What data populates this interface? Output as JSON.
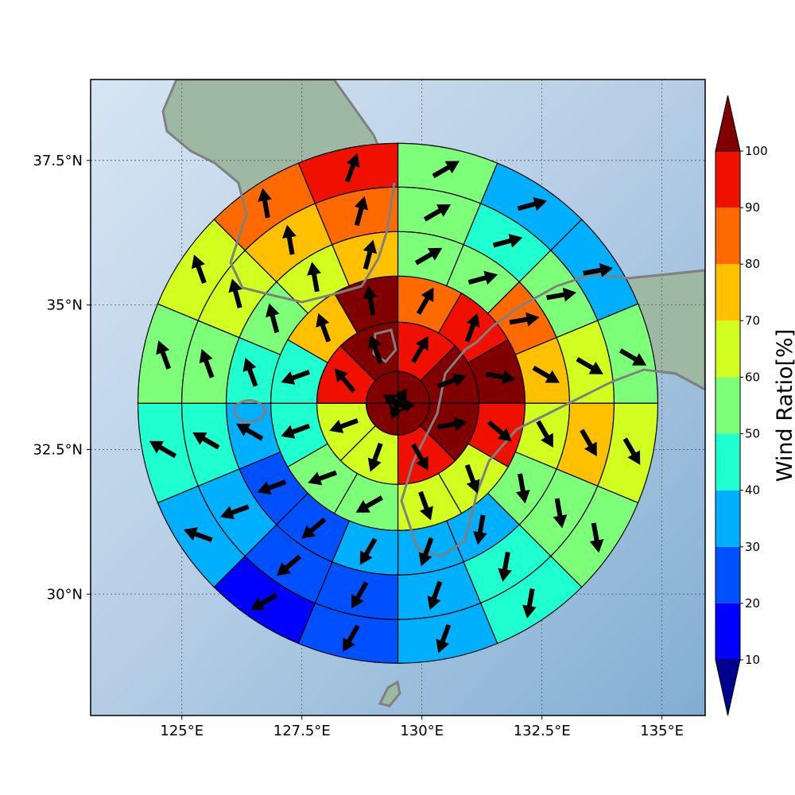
{
  "chart_data": {
    "type": "heatmap",
    "subtype": "polar-sector-wind-map",
    "x_ticks": [
      "125°E",
      "127.5°E",
      "130°E",
      "132.5°E",
      "135°E"
    ],
    "y_ticks": [
      "37.5°N",
      "35°N",
      "32.5°N",
      "30°N"
    ],
    "x_tick_values": [
      125,
      127.5,
      130,
      132.5,
      135
    ],
    "y_tick_values": [
      37.5,
      35,
      32.5,
      30
    ],
    "xlim": [
      123.1,
      135.9
    ],
    "ylim": [
      27.9,
      38.9
    ],
    "grid": true,
    "colorbar": {
      "label": "Wind Ratio[%]",
      "ticks": [
        10,
        20,
        30,
        40,
        50,
        60,
        70,
        80,
        90,
        100
      ],
      "extend": "both",
      "colors": [
        "#00008f",
        "#0000ff",
        "#0050ff",
        "#00b0ff",
        "#20ffd0",
        "#7dff7a",
        "#d0ff20",
        "#ffc000",
        "#ff6a00",
        "#f01000",
        "#800000"
      ]
    },
    "polar_grid": {
      "center": [
        129.5,
        33.3
      ],
      "ring_count": 6,
      "sectors_per_ring": [
        4,
        8,
        12,
        16,
        16,
        16
      ],
      "direction_order": "clockwise from north"
    },
    "ring_values": [
      [
        100,
        100,
        100,
        100
      ],
      [
        90,
        100,
        100,
        90,
        60,
        60,
        90,
        100
      ],
      [
        80,
        90,
        100,
        90,
        60,
        60,
        50,
        50,
        40,
        40,
        70,
        100
      ],
      [
        50,
        50,
        80,
        70,
        60,
        50,
        30,
        30,
        30,
        20,
        20,
        30,
        40,
        50,
        60,
        70
      ],
      [
        50,
        40,
        50,
        60,
        70,
        50,
        40,
        30,
        20,
        20,
        30,
        40,
        50,
        60,
        70,
        80
      ],
      [
        50,
        30,
        30,
        50,
        60,
        50,
        40,
        30,
        20,
        10,
        30,
        40,
        50,
        60,
        80,
        90
      ]
    ],
    "arrow_directions_deg": [
      [
        30,
        100,
        200,
        300
      ],
      [
        30,
        70,
        80,
        150,
        200,
        250,
        320,
        340
      ],
      [
        30,
        20,
        100,
        130,
        160,
        160,
        240,
        250,
        250,
        250,
        340,
        350
      ],
      [
        60,
        75,
        80,
        120,
        150,
        170,
        190,
        200,
        210,
        230,
        250,
        300,
        340,
        345,
        350,
        15
      ],
      [
        60,
        75,
        80,
        120,
        150,
        170,
        190,
        200,
        210,
        230,
        250,
        300,
        340,
        345,
        350,
        15
      ],
      [
        60,
        75,
        80,
        120,
        150,
        170,
        190,
        200,
        210,
        240,
        290,
        300,
        340,
        340,
        350,
        20
      ]
    ]
  }
}
